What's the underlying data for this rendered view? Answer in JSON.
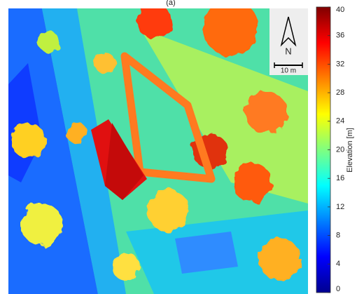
{
  "title": "(a)",
  "north_label": "N",
  "scale_label": "10 m",
  "colorbar": {
    "label": "Elevation [m]",
    "lim": [
      0,
      40
    ],
    "ticks": [
      0,
      4,
      8,
      12,
      16,
      20,
      24,
      28,
      32,
      36,
      40
    ]
  }
}
